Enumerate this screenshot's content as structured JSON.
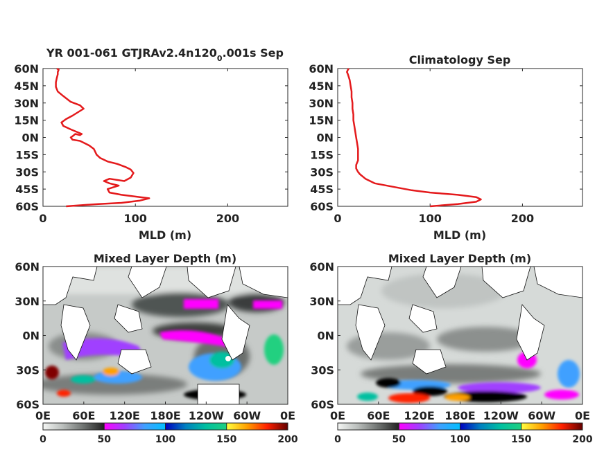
{
  "chart_data": [
    {
      "type": "line",
      "title_main": "YR 001-061 GTJRAv2.4n120",
      "title_sub": "0",
      "title_tail": ".001s Sep",
      "xlabel": "MLD (m)",
      "xlim": [
        0,
        265
      ],
      "xticks": [
        "0",
        "100",
        "200"
      ],
      "ylim": [
        -60,
        60
      ],
      "yticks": [
        "60N",
        "45N",
        "30N",
        "15N",
        "0N",
        "15S",
        "30S",
        "45S",
        "60S"
      ],
      "line_color": "#e41a1c",
      "series": [
        {
          "x": [
            25,
            60,
            85,
            105,
            115,
            105,
            85,
            72,
            70,
            82,
            72,
            66,
            72,
            88,
            95,
            98,
            95,
            90,
            80,
            70,
            62,
            58,
            55,
            50,
            45,
            40,
            32,
            30,
            32,
            35,
            40,
            42,
            30,
            22,
            20,
            25,
            32,
            38,
            44,
            40,
            30,
            22,
            16,
            14,
            14,
            15,
            16,
            16,
            17,
            15
          ],
          "y": [
            -60,
            -58,
            -57,
            -55,
            -53,
            -52,
            -50,
            -48,
            -45,
            -42,
            -40,
            -38,
            -36,
            -38,
            -35,
            -31,
            -28,
            -26,
            -23,
            -21,
            -18,
            -15,
            -10,
            -7,
            -5,
            -3,
            -2,
            0,
            1,
            3,
            2,
            3,
            7,
            10,
            13,
            16,
            19,
            22,
            25,
            28,
            31,
            36,
            40,
            44,
            48,
            52,
            55,
            57,
            59,
            60
          ]
        }
      ]
    },
    {
      "type": "line",
      "title": "Climatology Sep",
      "xlabel": "MLD (m)",
      "xlim": [
        0,
        265
      ],
      "xticks": [
        "0",
        "100",
        "200"
      ],
      "ylim": [
        -60,
        60
      ],
      "yticks": [
        "60N",
        "45N",
        "30N",
        "15N",
        "0N",
        "15S",
        "30S",
        "45S",
        "60S"
      ],
      "line_color": "#e41a1c",
      "series": [
        {
          "x": [
            100,
            130,
            150,
            155,
            150,
            130,
            100,
            80,
            60,
            40,
            30,
            24,
            22,
            20,
            20,
            22,
            22,
            22,
            21,
            20,
            19,
            18,
            17,
            17,
            16,
            16,
            15,
            15,
            14,
            13,
            11,
            10,
            11,
            12
          ],
          "y": [
            -60,
            -58,
            -56,
            -54,
            -52,
            -50,
            -48,
            -46,
            -43,
            -40,
            -36,
            -32,
            -30,
            -27,
            -24,
            -20,
            -15,
            -10,
            -5,
            0,
            5,
            10,
            15,
            20,
            25,
            30,
            35,
            40,
            45,
            50,
            55,
            57,
            59,
            60
          ]
        }
      ]
    },
    {
      "type": "heatmap",
      "title": "Mixed Layer Depth (m)",
      "xticks": [
        "0E",
        "60E",
        "120E",
        "180E",
        "120W",
        "60W",
        "0E"
      ],
      "yticks": [
        "60N",
        "30N",
        "0N",
        "30S",
        "60S"
      ],
      "colorbar_ticks": [
        "0",
        "50",
        "100",
        "150",
        "200"
      ],
      "colorbar_range": [
        0,
        200
      ]
    },
    {
      "type": "heatmap",
      "title": "Mixed Layer Depth (m)",
      "xticks": [
        "0E",
        "60E",
        "120E",
        "180E",
        "120W",
        "60W",
        "0E"
      ],
      "yticks": [
        "60N",
        "30N",
        "0N",
        "30S",
        "60S"
      ],
      "colorbar_ticks": [
        "0",
        "50",
        "100",
        "150",
        "200"
      ],
      "colorbar_range": [
        0,
        200
      ]
    }
  ],
  "colorbar_colors": {
    "segments": [
      [
        "#f4f6f4",
        "#b8bcba",
        "#6e7270",
        "#202020"
      ],
      [
        "#ff00ff",
        "#a040ff",
        "#40a0ff",
        "#00c0ff"
      ],
      [
        "#0000c0",
        "#0080c0",
        "#00c0a0",
        "#20d080"
      ],
      [
        "#ffff40",
        "#ffa000",
        "#ff2000",
        "#600000"
      ]
    ]
  }
}
